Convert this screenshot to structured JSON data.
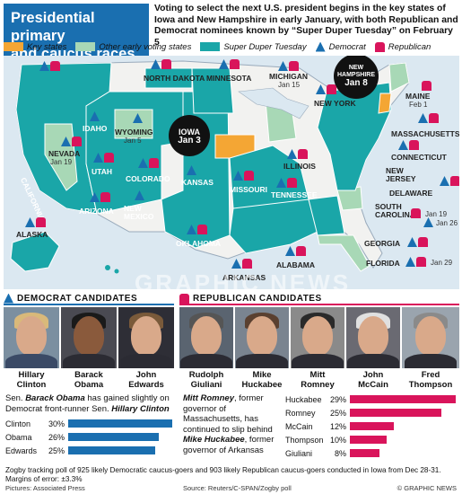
{
  "header": {
    "title_line1": "Presidential primary",
    "title_line2": "and caucus races",
    "intro": "Voting to select the next U.S. president begins in the key states of Iowa and New Hampshire in early January, with both Republican and Democrat nominees known by “Super Duper Tuesday” on February 5"
  },
  "legend": {
    "key_states": "Key states",
    "early_states": "Other early voting states",
    "super_tuesday": "Super Duper Tuesday",
    "democrat": "Democrat",
    "republican": "Republican",
    "colors": {
      "key": "#f4a634",
      "early": "#a8d8b6",
      "super": "#1aa6a8",
      "dem": "#1a6fb0",
      "rep": "#d9145b"
    }
  },
  "map": {
    "states": {
      "north_dakota": "NORTH DAKOTA",
      "minnesota": "MINNESOTA",
      "michigan": "MICHIGAN",
      "new_york": "NEW YORK",
      "maine": "MAINE",
      "idaho": "IDAHO",
      "wyoming": "WYOMING",
      "nevada": "NEVADA",
      "california": "CALIFORNIA",
      "utah": "UTAH",
      "colorado": "COLORADO",
      "arizona": "ARIZONA",
      "new_mexico": "NEW\nMEXICO",
      "kansas": "KANSAS",
      "missouri": "MISSOURI",
      "illinois": "ILLINOIS",
      "tennessee": "TENNESSEE",
      "oklahoma": "OKLAHOMA",
      "arkansas": "ARKANSAS",
      "alabama": "ALABAMA",
      "georgia": "GEORGIA",
      "florida": "FLORIDA",
      "south_carolina": "SOUTH\nCAROLINA",
      "massachusetts": "MASSACHUSETTS",
      "connecticut": "CONNECTICUT",
      "new_jersey": "NEW\nJERSEY",
      "delaware": "DELAWARE",
      "alaska": "ALASKA"
    },
    "dates": {
      "michigan": "Jan 15",
      "maine": "Feb 1",
      "wyoming": "Jan 5",
      "nevada": "Jan 19",
      "sc_dem": "Jan 26",
      "sc_rep": "Jan 19",
      "florida": "Jan 29"
    },
    "iowa": {
      "name": "IOWA",
      "date": "Jan 3"
    },
    "new_hampshire": {
      "name": "NEW HAMPSHIRE",
      "date": "Jan 8"
    }
  },
  "democrats": {
    "heading": "DEMOCRAT CANDIDATES",
    "candidates": [
      {
        "first": "Hillary",
        "last": "Clinton"
      },
      {
        "first": "Barack",
        "last": "Obama"
      },
      {
        "first": "John",
        "last": "Edwards"
      }
    ],
    "text_a": "Sen. ",
    "text_b": "Barack Obama",
    "text_c": " has gained slightly on Democrat front-runner Sen. ",
    "text_d": "Hillary Clinton",
    "poll": [
      {
        "name": "Clinton",
        "pct": 30,
        "label": "30%"
      },
      {
        "name": "Obama",
        "pct": 26,
        "label": "26%"
      },
      {
        "name": "Edwards",
        "pct": 25,
        "label": "25%"
      }
    ]
  },
  "republicans": {
    "heading": "REPUBLICAN CANDIDATES",
    "candidates": [
      {
        "first": "Rudolph",
        "last": "Giuliani"
      },
      {
        "first": "Mike",
        "last": "Huckabee"
      },
      {
        "first": "Mitt",
        "last": "Romney"
      },
      {
        "first": "John",
        "last": "McCain"
      },
      {
        "first": "Fred",
        "last": "Thompson"
      }
    ],
    "text_a": "Mitt Romney",
    "text_b": ", former governor of Massachusetts, has continued to slip behind ",
    "text_c": "Mike Huckabee",
    "text_d": ", former governor of Arkansas",
    "poll": [
      {
        "name": "Huckabee",
        "pct": 29,
        "label": "29%"
      },
      {
        "name": "Romney",
        "pct": 25,
        "label": "25%"
      },
      {
        "name": "McCain",
        "pct": 12,
        "label": "12%"
      },
      {
        "name": "Thompson",
        "pct": 10,
        "label": "10%"
      },
      {
        "name": "Giuliani",
        "pct": 8,
        "label": "8%"
      }
    ]
  },
  "footer": {
    "note": "Zogby tracking poll of 925 likely Democratic caucus-goers and 903 likely Republican caucus-goers conducted in Iowa from Dec 28-31. Margins of error: ±3.3%",
    "pictures": "Pictures: Associated Press",
    "source": "Source: Reuters/C-SPAN/Zogby poll",
    "copyright": "© GRAPHIC NEWS",
    "watermark": "GRAPHIC NEWS"
  }
}
